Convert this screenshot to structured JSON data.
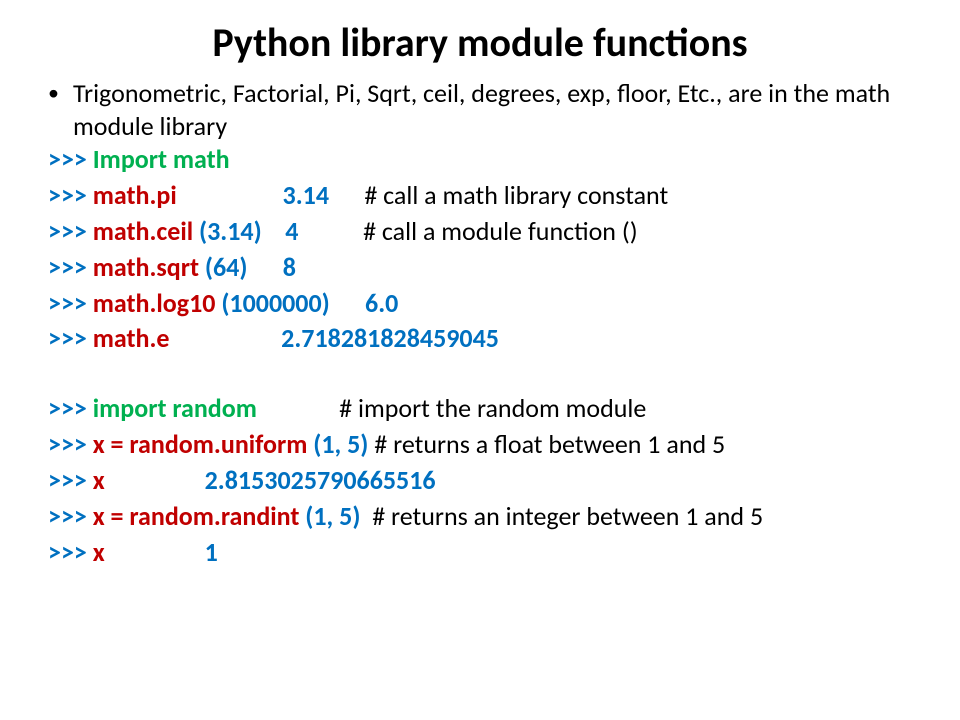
{
  "title": "Python library module functions",
  "bullet": "Trigonometric, Factorial, Pi, Sqrt, ceil, degrees, exp, floor, Etc., are in the math module library",
  "lines": {
    "l1": {
      "prompt": ">>> ",
      "import": "Import math"
    },
    "l2": {
      "prompt": ">>> ",
      "call": "math.pi",
      "gap1": "                  ",
      "val": "3.14",
      "gap2": "      ",
      "comment": "# call a math library constant"
    },
    "l3": {
      "prompt": ">>> ",
      "call": "math.ceil ",
      "args": "(3.14)",
      "gap1": "    ",
      "val": "4",
      "gap2": "           ",
      "comment": "# call a module function ()"
    },
    "l4": {
      "prompt": ">>> ",
      "call": "math.sqrt ",
      "args": "(64)",
      "gap1": "      ",
      "val": "8"
    },
    "l5": {
      "prompt": ">>> ",
      "call": "math.log10 ",
      "args": "(1000000)",
      "gap1": "      ",
      "val": "6.0"
    },
    "l6": {
      "prompt": ">>> ",
      "call": "math.e",
      "gap1": "                   ",
      "val": "2.718281828459045"
    },
    "l7": {
      "prompt": ">>> ",
      "import": "import random",
      "gap1": "              ",
      "comment": "# import the random module"
    },
    "l8": {
      "prompt": ">>> ",
      "call": "x = random.uniform ",
      "args": "(1, 5)",
      "gap1": " ",
      "comment": "# returns a float between 1 and 5"
    },
    "l9": {
      "prompt": ">>> ",
      "call": "x",
      "gap1": "                 ",
      "val": "2.8153025790665516"
    },
    "l10": {
      "prompt": ">>> ",
      "call": "x = random.randint ",
      "args": "(1, 5)",
      "gap1": "  ",
      "comment": "# returns an integer between 1 and 5"
    },
    "l11": {
      "prompt": ">>> ",
      "call": "x",
      "gap1": "                 ",
      "val": "1"
    }
  }
}
